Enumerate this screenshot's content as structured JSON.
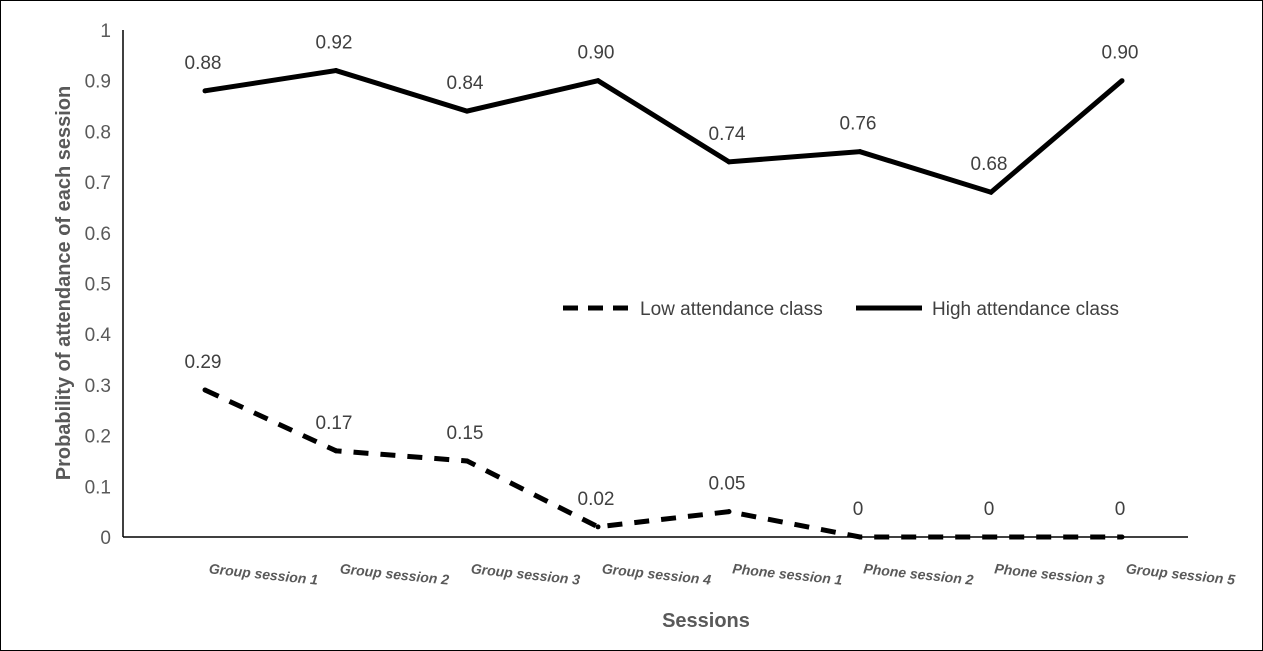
{
  "chart_data": {
    "type": "line",
    "title": "",
    "xlabel": "Sessions",
    "ylabel": "Probability of attendance of each session",
    "ylim": [
      0,
      1
    ],
    "yticks": [
      "0",
      "0.1",
      "0.2",
      "0.3",
      "0.4",
      "0.5",
      "0.6",
      "0.7",
      "0.8",
      "0.9",
      "1"
    ],
    "categories": [
      "Group session 1",
      "Group session 2",
      "Group session 3",
      "Group session 4",
      "Phone session 1",
      "Phone session 2",
      "Phone session 3",
      "Group session 5"
    ],
    "grid": false,
    "legend_position": "center-right",
    "series": [
      {
        "name": "Low attendance class",
        "style": "dashed",
        "color": "#000000",
        "values": [
          0.29,
          0.17,
          0.15,
          0.02,
          0.05,
          0,
          0,
          0
        ],
        "labels": [
          "0.29",
          "0.17",
          "0.15",
          "0.02",
          "0.05",
          "0",
          "0",
          "0"
        ]
      },
      {
        "name": "High attendance class",
        "style": "solid",
        "color": "#000000",
        "values": [
          0.88,
          0.92,
          0.84,
          0.9,
          0.74,
          0.76,
          0.68,
          0.9
        ],
        "labels": [
          "0.88",
          "0.92",
          "0.84",
          "0.90",
          "0.74",
          "0.76",
          "0.68",
          "0.90"
        ]
      }
    ]
  }
}
